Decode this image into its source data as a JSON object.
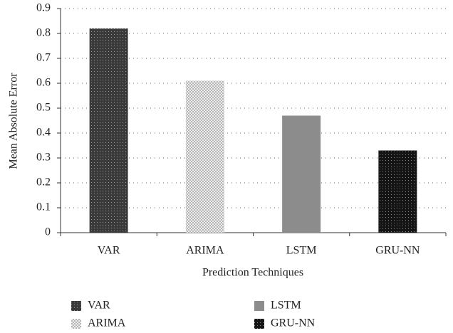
{
  "chart_data": {
    "type": "bar",
    "categories": [
      "VAR",
      "ARIMA",
      "LSTM",
      "GRU-NN"
    ],
    "values": [
      0.82,
      0.61,
      0.47,
      0.33
    ],
    "colors": [
      "#3a3a3a",
      "#b4b4b4",
      "#8c8c8c",
      "#141414"
    ],
    "xlabel": "Prediction Techniques",
    "ylabel": "Mean Absolute Error",
    "ylim": [
      0,
      0.9
    ],
    "yticks": [
      0,
      0.1,
      0.2,
      0.3,
      0.4,
      0.5,
      0.6,
      0.7,
      0.8,
      0.9
    ],
    "grid": true,
    "legend": "bottom"
  }
}
